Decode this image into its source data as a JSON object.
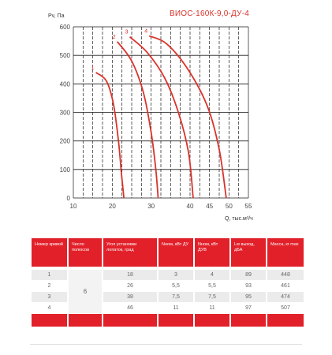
{
  "chart_data": {
    "type": "line",
    "title": "ВИОС-160К-9,0-ДУ-4",
    "ylabel": "Pv, Па",
    "xlabel": "Q, тыс.м³/ч",
    "xlim": [
      10,
      55
    ],
    "ylim": [
      0,
      600
    ],
    "x_ticks": [
      "10",
      "20",
      "30",
      "40",
      "45",
      "50",
      "55"
    ],
    "y_ticks": [
      "0",
      "100",
      "200",
      "300",
      "400",
      "500",
      "600"
    ],
    "grid": true,
    "series": [
      {
        "name": "1",
        "points": [
          [
            15.8,
            440
          ],
          [
            18.5,
            410
          ],
          [
            20.3,
            330
          ],
          [
            21.6,
            200
          ],
          [
            22.4,
            80
          ],
          [
            23.0,
            0
          ]
        ]
      },
      {
        "name": "2",
        "points": [
          [
            21.3,
            548
          ],
          [
            25.0,
            480
          ],
          [
            28.0,
            370
          ],
          [
            30.0,
            230
          ],
          [
            31.2,
            100
          ],
          [
            31.8,
            0
          ]
        ]
      },
      {
        "name": "3",
        "points": [
          [
            24.5,
            565
          ],
          [
            29.0,
            510
          ],
          [
            33.5,
            420
          ],
          [
            37.0,
            300
          ],
          [
            39.6,
            160
          ],
          [
            40.8,
            0
          ]
        ]
      },
      {
        "name": "4",
        "points": [
          [
            29.5,
            568
          ],
          [
            34.0,
            540
          ],
          [
            39.5,
            450
          ],
          [
            44.5,
            320
          ],
          [
            47.5,
            170
          ],
          [
            49.3,
            0
          ]
        ]
      }
    ],
    "color": "#d9332b"
  },
  "table": {
    "headers": [
      "Номер кривой",
      "Число полюсов",
      "Угол установки лопаток, град",
      "Nном, кВт ДУ",
      "Nном, кВт ДУВ",
      "Lw выход, дБА",
      "Масса, кг max"
    ],
    "poles": "6",
    "rows": [
      [
        "1",
        "18",
        "3",
        "4",
        "89",
        "448"
      ],
      [
        "2",
        "26",
        "5,5",
        "5,5",
        "93",
        "461"
      ],
      [
        "3",
        "38",
        "7,5",
        "7,5",
        "95",
        "474"
      ],
      [
        "4",
        "46",
        "11",
        "11",
        "97",
        "507"
      ]
    ]
  }
}
